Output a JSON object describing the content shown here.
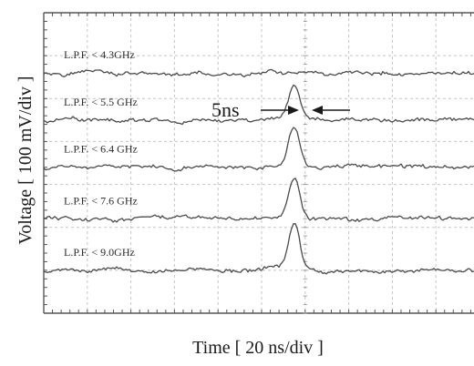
{
  "chart_data": {
    "type": "line",
    "xlabel": "Time [ 20 ns/div ]",
    "ylabel": "Voltage [ 100 mV/div ]",
    "x_div_ns": 20,
    "y_div_mV": 100,
    "grid": true,
    "x_divisions": 10,
    "y_divisions": 7,
    "annotation": {
      "text": "5ns",
      "pulse_width_ns": 5,
      "pulse_center_ns": 115
    },
    "series": [
      {
        "name": "L.P.F. < 4.3GHz",
        "baseline_div": 5.6,
        "peak_div": 0.0
      },
      {
        "name": "L.P.F. < 5.5 GHz",
        "baseline_div": 4.5,
        "peak_div": 0.8
      },
      {
        "name": "L.P.F. < 6.4 GHz",
        "baseline_div": 3.4,
        "peak_div": 0.9
      },
      {
        "name": "L.P.F. < 7.6 GHz",
        "baseline_div": 2.2,
        "peak_div": 1.0
      },
      {
        "name": "L.P.F. < 9.0GHz",
        "baseline_div": 1.0,
        "peak_div": 1.1
      }
    ]
  }
}
